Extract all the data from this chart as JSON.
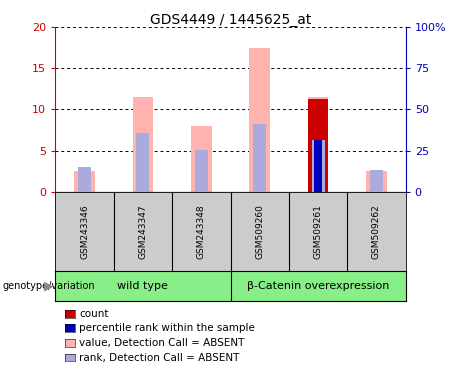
{
  "title": "GDS4449 / 1445625_at",
  "samples": [
    "GSM243346",
    "GSM243347",
    "GSM243348",
    "GSM509260",
    "GSM509261",
    "GSM509262"
  ],
  "group_labels": [
    "wild type",
    "β-Catenin overexpression"
  ],
  "group_wt_count": 3,
  "group_bc_count": 3,
  "ylim_left": [
    0,
    20
  ],
  "ylim_right": [
    0,
    100
  ],
  "yticks_left": [
    0,
    5,
    10,
    15,
    20
  ],
  "yticks_right": [
    0,
    25,
    50,
    75,
    100
  ],
  "yticklabels_right": [
    "0",
    "25",
    "50",
    "75",
    "100%"
  ],
  "pink_value": [
    2.5,
    11.5,
    8.0,
    17.5,
    11.5,
    2.5
  ],
  "lavender_rank_pct": [
    15.0,
    36.0,
    25.5,
    41.0,
    31.5,
    13.5
  ],
  "red_count": [
    0,
    0,
    0,
    0,
    11.3,
    0
  ],
  "blue_percentile_pct": [
    0,
    0,
    0,
    0,
    31.5,
    0
  ],
  "pink_color": "#FFB3AE",
  "lavender_color": "#AAAADD",
  "red_color": "#CC0000",
  "blue_color": "#0000BB",
  "left_axis_color": "#CC0000",
  "right_axis_color": "#0000BB",
  "label_area_color": "#CCCCCC",
  "group_color": "#88EE88",
  "legend_items": [
    {
      "color": "#CC0000",
      "label": "count"
    },
    {
      "color": "#0000BB",
      "label": "percentile rank within the sample"
    },
    {
      "color": "#FFB3AE",
      "label": "value, Detection Call = ABSENT"
    },
    {
      "color": "#AAAADD",
      "label": "rank, Detection Call = ABSENT"
    }
  ]
}
